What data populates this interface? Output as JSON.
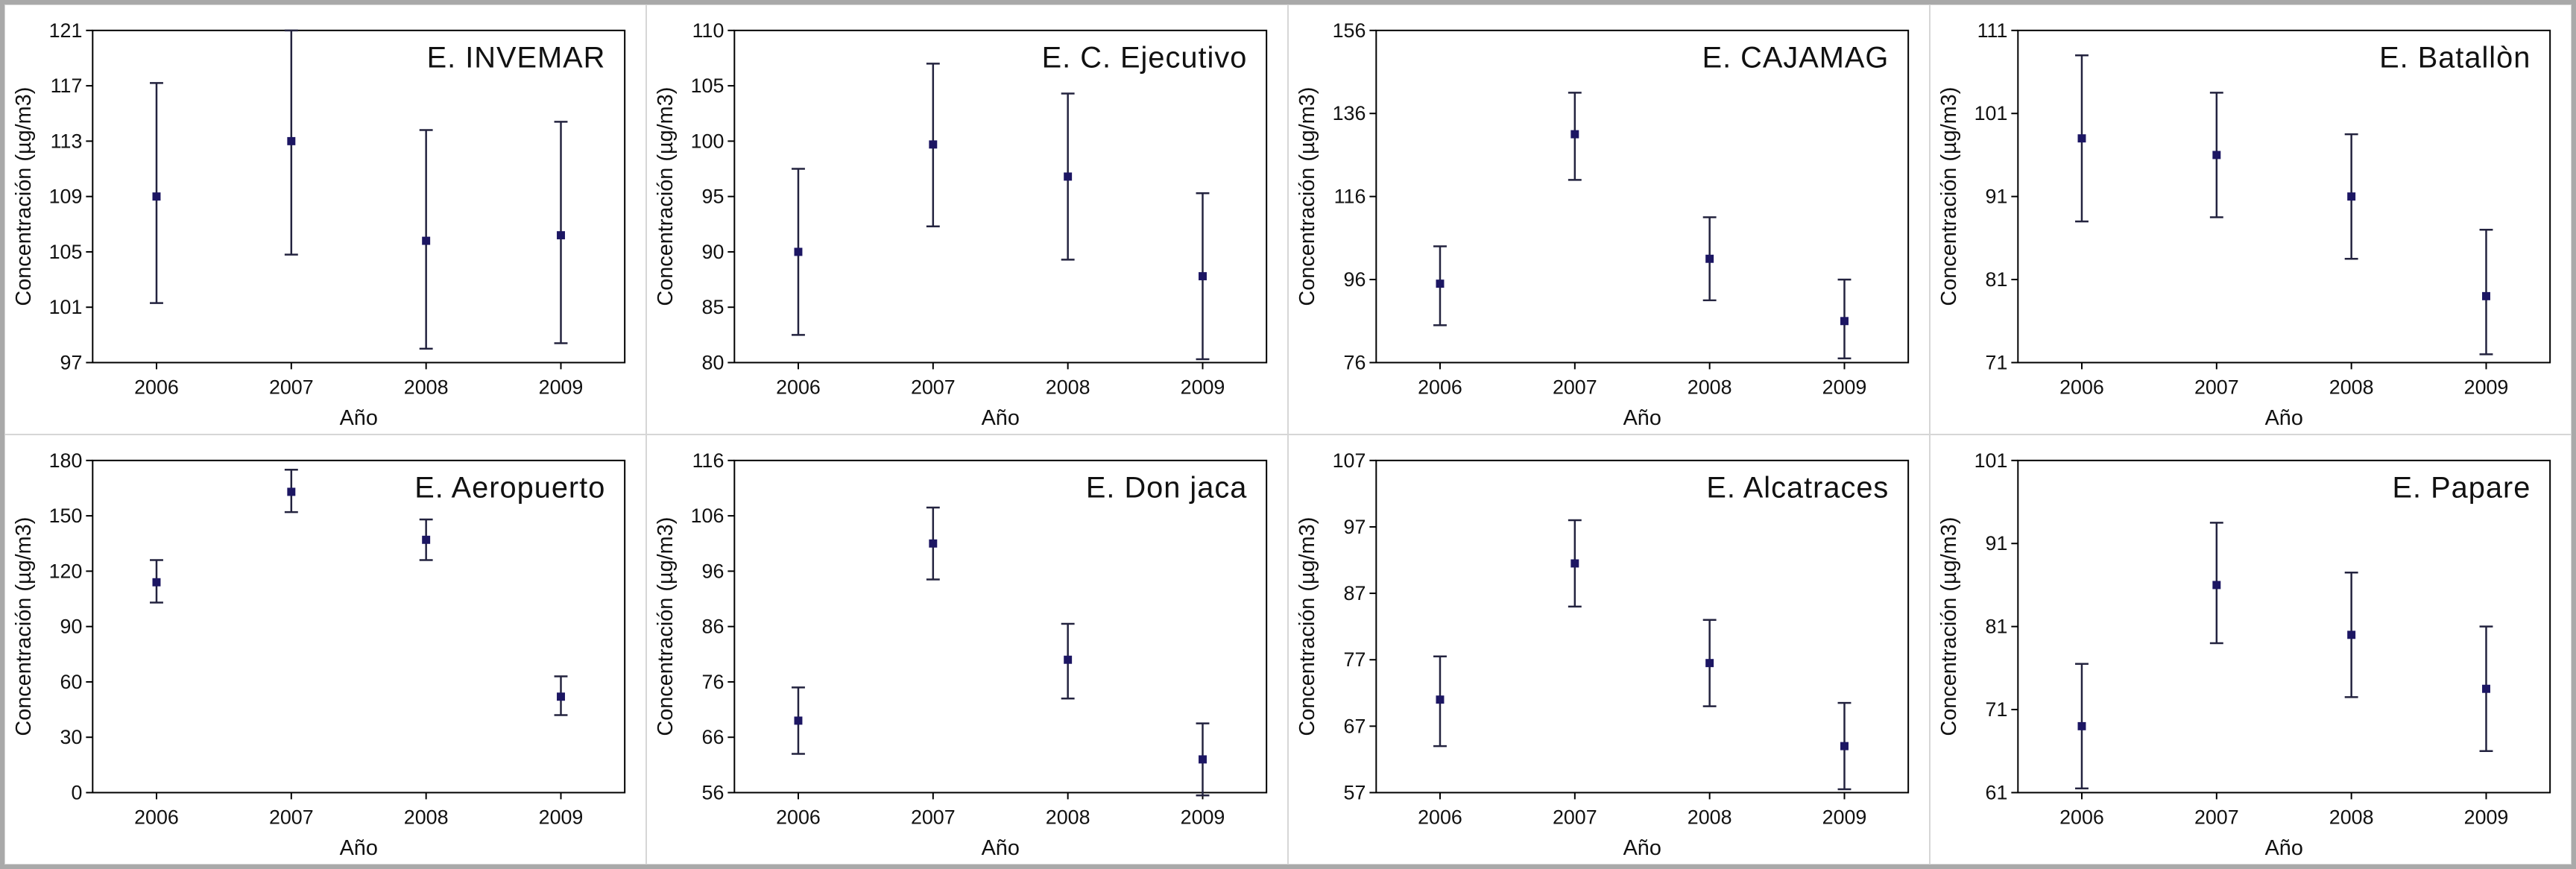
{
  "figure": {
    "background": "#ffffff",
    "frame_border_color": "#a9a9a9",
    "panel_border_color": "#d6d6d6"
  },
  "colors": {
    "marker": "#1c1663",
    "error_bar": "#23233f",
    "axis": "#000000",
    "text": "#111111"
  },
  "chart_data": [
    {
      "type": "scatter",
      "title": "E. INVEMAR",
      "xlabel": "Año",
      "ylabel": "Concentración (µg/m3)",
      "categories": [
        "2006",
        "2007",
        "2008",
        "2009"
      ],
      "values": [
        109,
        113,
        105.8,
        106.2
      ],
      "error_low": [
        101.3,
        104.8,
        98,
        98.4
      ],
      "error_high": [
        117.2,
        121,
        113.8,
        114.4
      ],
      "ylim": [
        97,
        121
      ],
      "yticks": [
        97,
        101,
        105,
        109,
        113,
        117,
        121
      ],
      "grid": false,
      "legend": "none"
    },
    {
      "type": "scatter",
      "title": "E. C. Ejecutivo",
      "xlabel": "Año",
      "ylabel": "Concentración (µg/m3)",
      "categories": [
        "2006",
        "2007",
        "2008",
        "2009"
      ],
      "values": [
        90,
        99.7,
        96.8,
        87.8
      ],
      "error_low": [
        82.5,
        92.3,
        89.3,
        80.3
      ],
      "error_high": [
        97.5,
        107,
        104.3,
        95.3
      ],
      "ylim": [
        80,
        110
      ],
      "yticks": [
        80,
        85,
        90,
        95,
        100,
        105,
        110
      ],
      "grid": false,
      "legend": "none"
    },
    {
      "type": "scatter",
      "title": "E. CAJAMAG",
      "xlabel": "Año",
      "ylabel": "Concentración (µg/m3)",
      "categories": [
        "2006",
        "2007",
        "2008",
        "2009"
      ],
      "values": [
        95,
        131,
        101,
        86
      ],
      "error_low": [
        85,
        120,
        91,
        77
      ],
      "error_high": [
        104,
        141,
        111,
        96
      ],
      "ylim": [
        76,
        156
      ],
      "yticks": [
        76,
        96,
        116,
        136,
        156
      ],
      "grid": false,
      "legend": "none"
    },
    {
      "type": "scatter",
      "title": "E. Batallòn",
      "xlabel": "Año",
      "ylabel": "Concentración (µg/m3)",
      "categories": [
        "2006",
        "2007",
        "2008",
        "2009"
      ],
      "values": [
        98,
        96,
        91,
        79
      ],
      "error_low": [
        88,
        88.5,
        83.5,
        72
      ],
      "error_high": [
        108,
        103.5,
        98.5,
        87
      ],
      "ylim": [
        71,
        111
      ],
      "yticks": [
        71,
        81,
        91,
        101,
        111
      ],
      "grid": false,
      "legend": "none"
    },
    {
      "type": "scatter",
      "title": "E. Aeropuerto",
      "xlabel": "Año",
      "ylabel": "Concentración (µg/m3)",
      "categories": [
        "2006",
        "2007",
        "2008",
        "2009"
      ],
      "values": [
        114,
        163,
        137,
        52
      ],
      "error_low": [
        103,
        152,
        126,
        42
      ],
      "error_high": [
        126,
        175,
        148,
        63
      ],
      "ylim": [
        0,
        180
      ],
      "yticks": [
        0,
        30,
        60,
        90,
        120,
        150,
        180
      ],
      "grid": false,
      "legend": "none"
    },
    {
      "type": "scatter",
      "title": "E. Don jaca",
      "xlabel": "Año",
      "ylabel": "Concentración (µg/m3)",
      "categories": [
        "2006",
        "2007",
        "2008",
        "2009"
      ],
      "values": [
        69,
        101,
        80,
        62
      ],
      "error_low": [
        63,
        94.5,
        73,
        55.5
      ],
      "error_high": [
        75,
        107.5,
        86.5,
        68.5
      ],
      "ylim": [
        56,
        116
      ],
      "yticks": [
        56,
        66,
        76,
        86,
        96,
        106,
        116
      ],
      "grid": false,
      "legend": "none"
    },
    {
      "type": "scatter",
      "title": "E. Alcatraces",
      "xlabel": "Año",
      "ylabel": "Concentración (µg/m3)",
      "categories": [
        "2006",
        "2007",
        "2008",
        "2009"
      ],
      "values": [
        71,
        91.5,
        76.5,
        64
      ],
      "error_low": [
        64,
        85,
        70,
        57.5
      ],
      "error_high": [
        77.5,
        98,
        83,
        70.5
      ],
      "ylim": [
        57,
        107
      ],
      "yticks": [
        57,
        67,
        77,
        87,
        97,
        107
      ],
      "grid": false,
      "legend": "none"
    },
    {
      "type": "scatter",
      "title": "E. Papare",
      "xlabel": "Año",
      "ylabel": "Concentración (µg/m3)",
      "categories": [
        "2006",
        "2007",
        "2008",
        "2009"
      ],
      "values": [
        69,
        86,
        80,
        73.5
      ],
      "error_low": [
        61.5,
        79,
        72.5,
        66
      ],
      "error_high": [
        76.5,
        93.5,
        87.5,
        81
      ],
      "ylim": [
        61,
        101
      ],
      "yticks": [
        61,
        71,
        81,
        91,
        101
      ],
      "grid": false,
      "legend": "none"
    }
  ]
}
